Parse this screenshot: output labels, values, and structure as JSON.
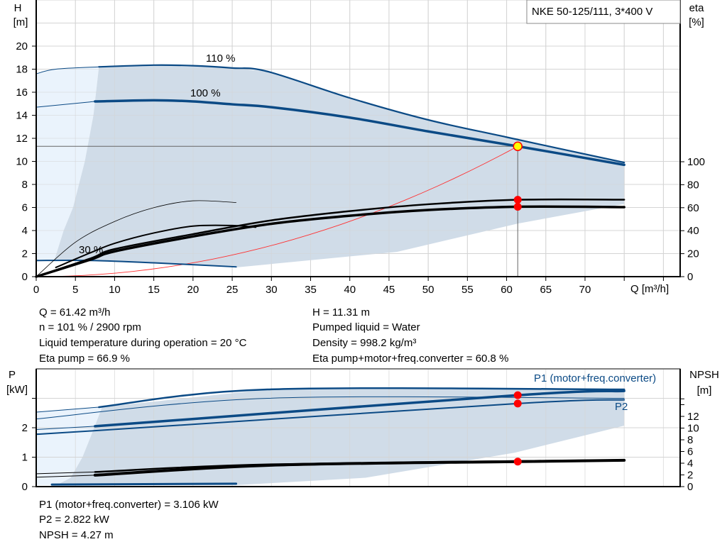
{
  "colors": {
    "curve_blue": "#0b4a85",
    "envelope": "#d0dce8",
    "envelope_light": "#eaf3fc",
    "grid": "#d4d4d4",
    "marker_red": "#ff0000",
    "marker_yellow": "#ffff00",
    "system_curve": "#ff3030"
  },
  "chart_data": [
    {
      "type": "line",
      "title": "NKE 50-125/111, 3*400 V",
      "xlabel": "Q [m³/h]",
      "ylabel": "H",
      "ylabel_unit": "[m]",
      "y2label": "eta",
      "y2label_unit": "[%]",
      "xlim": [
        0,
        82
      ],
      "ylim": [
        0,
        24
      ],
      "y2lim": [
        0,
        148
      ],
      "grid": true,
      "xticks": [
        0,
        5,
        10,
        15,
        20,
        25,
        30,
        35,
        40,
        45,
        50,
        55,
        60,
        65,
        70
      ],
      "yticks": [
        0,
        2,
        4,
        6,
        8,
        10,
        12,
        14,
        16,
        18,
        20
      ],
      "y2ticks": [
        0,
        20,
        40,
        60,
        80,
        100
      ],
      "envelopes": [
        {
          "shade": "light",
          "axis": "H",
          "points": [
            [
              0,
              17.6
            ],
            [
              2.5,
              18.0
            ],
            [
              8,
              18.2
            ],
            [
              7.3,
              14
            ],
            [
              6.2,
              10
            ],
            [
              4.7,
              6
            ],
            [
              3.5,
              4
            ],
            [
              2.3,
              1.4
            ],
            [
              0,
              1.4
            ]
          ]
        },
        {
          "shade": "dark",
          "axis": "H",
          "points": [
            [
              8,
              18.2
            ],
            [
              15,
              18.35
            ],
            [
              20,
              18.3
            ],
            [
              25,
              18.1
            ],
            [
              29.5,
              17.8
            ],
            [
              40,
              15.5
            ],
            [
              50,
              13.6
            ],
            [
              60,
              12.1
            ],
            [
              75,
              9.9
            ],
            [
              75,
              6.3
            ],
            [
              61.4,
              4.6
            ],
            [
              46,
              2.15
            ],
            [
              25.5,
              0.8
            ],
            [
              15,
              1.2
            ],
            [
              7,
              1.4
            ],
            [
              2.3,
              1.4
            ],
            [
              3.5,
              4
            ],
            [
              4.7,
              6
            ],
            [
              6.2,
              10
            ],
            [
              7.3,
              14
            ],
            [
              8,
              18.2
            ]
          ]
        }
      ],
      "series": [
        {
          "name": "110 %",
          "axis": "H",
          "color": "blue",
          "thin": [
            [
              0,
              17.6
            ],
            [
              2.5,
              18.0
            ],
            [
              8,
              18.2
            ]
          ],
          "points": [
            [
              8,
              18.2
            ],
            [
              15,
              18.35
            ],
            [
              20,
              18.3
            ],
            [
              25,
              18.1
            ],
            [
              29.5,
              17.8
            ],
            [
              40,
              15.5
            ],
            [
              50,
              13.6
            ],
            [
              60,
              12.1
            ],
            [
              75,
              9.9
            ]
          ],
          "width": 2.2
        },
        {
          "name": "100 %",
          "axis": "H",
          "color": "blue",
          "thin": [
            [
              0,
              14.7
            ],
            [
              7.5,
              15.2
            ]
          ],
          "points": [
            [
              7.5,
              15.2
            ],
            [
              15,
              15.3
            ],
            [
              20,
              15.2
            ],
            [
              25,
              14.95
            ],
            [
              30,
              14.7
            ],
            [
              40,
              13.8
            ],
            [
              50,
              12.6
            ],
            [
              61.42,
              11.31
            ],
            [
              75,
              9.7
            ]
          ],
          "width": 3.5
        },
        {
          "name": "30 %",
          "axis": "H",
          "color": "blue",
          "points": [
            [
              0,
              1.4
            ],
            [
              7,
              1.4
            ],
            [
              15,
              1.2
            ],
            [
              25.5,
              0.85
            ]
          ],
          "width": 2
        },
        {
          "axis": "eta",
          "color": "black",
          "points": [
            [
              0,
              0
            ],
            [
              5,
              30
            ],
            [
              10,
              48
            ],
            [
              15,
              60
            ],
            [
              20,
              66
            ],
            [
              25.5,
              64.5
            ]
          ],
          "width": 0.8
        },
        {
          "axis": "eta",
          "color": "black",
          "points": [
            [
              2.5,
              8
            ],
            [
              7,
              21
            ],
            [
              10,
              29
            ],
            [
              15,
              38
            ],
            [
              20,
              44
            ],
            [
              25,
              44.5
            ],
            [
              28,
              43
            ]
          ],
          "width": 2
        },
        {
          "axis": "eta",
          "color": "black",
          "points": [
            [
              0,
              0
            ],
            [
              7,
              16
            ],
            [
              10,
              24
            ],
            [
              20,
              37
            ],
            [
              30,
              49
            ],
            [
              40,
              57
            ],
            [
              50,
              63
            ],
            [
              61.42,
              66.9
            ],
            [
              75,
              67
            ]
          ],
          "width": 2.5
        },
        {
          "axis": "eta",
          "color": "black",
          "points": [
            [
              0,
              0
            ],
            [
              7,
              15
            ],
            [
              10,
              22
            ],
            [
              20,
              35
            ],
            [
              30,
              46
            ],
            [
              40,
              53
            ],
            [
              50,
              58
            ],
            [
              61.42,
              60.8
            ],
            [
              75,
              60.5
            ]
          ],
          "width": 3.5
        }
      ],
      "operating_point": {
        "Q": 61.42,
        "H": 11.31,
        "eta_pump": 66.9,
        "eta_total": 60.8
      }
    },
    {
      "type": "line",
      "ylabel": "P",
      "ylabel_unit": "[kW]",
      "y2label": "NPSH",
      "y2label_unit": "[m]",
      "xlim": [
        0,
        82
      ],
      "ylim": [
        0,
        4
      ],
      "y2lim": [
        0,
        20.1
      ],
      "grid": true,
      "yticks": [
        0,
        1,
        2
      ],
      "y2ticks": [
        0,
        2,
        4,
        6,
        8,
        10,
        12
      ],
      "series_labels": {
        "p1": "P1 (motor+freq.converter)",
        "p2": "P2"
      },
      "envelopes": [
        {
          "shade": "light",
          "axis": "P",
          "points": [
            [
              0,
              2.53
            ],
            [
              8.4,
              2.7
            ],
            [
              7.4,
              2
            ],
            [
              5.9,
              1
            ],
            [
              4.4,
              0.3
            ],
            [
              2.6,
              0.05
            ],
            [
              0,
              0.05
            ]
          ]
        },
        {
          "shade": "dark",
          "axis": "P",
          "points": [
            [
              8.4,
              2.7
            ],
            [
              29.5,
              3.3
            ],
            [
              75,
              3.3
            ],
            [
              75,
              2.07
            ],
            [
              61,
              1.15
            ],
            [
              42,
              0.3
            ],
            [
              25.5,
              0.05
            ],
            [
              2.6,
              0.05
            ],
            [
              4.4,
              0.3
            ],
            [
              5.9,
              1
            ],
            [
              7.4,
              2
            ],
            [
              8.4,
              2.7
            ]
          ]
        }
      ],
      "series": [
        {
          "name": "P1 (motor+freq.converter)",
          "axis": "P",
          "color": "blue",
          "thin": [
            [
              0,
              2.53
            ],
            [
              8,
              2.7
            ]
          ],
          "points": [
            [
              8,
              2.7
            ],
            [
              29.5,
              3.3
            ],
            [
              75,
              3.3
            ]
          ],
          "width": 2.5
        },
        {
          "axis": "P",
          "color": "blue",
          "points": [
            [
              0,
              2.3
            ],
            [
              29.5,
              3.0
            ],
            [
              75,
              3.0
            ]
          ],
          "width": 1
        },
        {
          "name": "P1 (motor+freq.converter)",
          "axis": "P",
          "color": "blue",
          "thin": [
            [
              0,
              1.94
            ],
            [
              7.5,
              2.05
            ]
          ],
          "points": [
            [
              7.5,
              2.05
            ],
            [
              61.42,
              3.106
            ],
            [
              75,
              3.25
            ]
          ],
          "width": 3.5
        },
        {
          "name": "P2",
          "axis": "P",
          "color": "blue",
          "points": [
            [
              0,
              1.78
            ],
            [
              7.5,
              1.9
            ],
            [
              61.42,
              2.822
            ],
            [
              75,
              2.95
            ]
          ],
          "width": 2
        },
        {
          "axis": "P",
          "color": "blue",
          "points": [
            [
              2,
              0.07
            ],
            [
              25.5,
              0.1
            ]
          ],
          "width": 3
        },
        {
          "axis": "NPSH",
          "color": "black",
          "thin": [
            [
              0,
              2.2
            ],
            [
              7.5,
              2.5
            ]
          ],
          "points": [
            [
              7.5,
              2.5
            ],
            [
              30,
              3.8
            ],
            [
              75,
              4.55
            ]
          ],
          "width": 2.5
        },
        {
          "axis": "NPSH",
          "color": "black",
          "thin": [
            [
              0,
              1.6
            ],
            [
              7.5,
              1.95
            ]
          ],
          "points": [
            [
              7.5,
              1.95
            ],
            [
              30,
              3.65
            ],
            [
              61.42,
              4.27
            ],
            [
              75,
              4.5
            ]
          ],
          "width": 4
        }
      ],
      "operating_point": {
        "Q": 61.42,
        "P1": 3.106,
        "P2": 2.822,
        "NPSH": 4.27
      }
    }
  ],
  "info_top": {
    "q": "Q = 61.42 m³/h",
    "n": "n = 101 % / 2900 rpm",
    "temp": "Liquid temperature during operation = 20 °C",
    "eta_pump": "Eta pump = 66.9 %",
    "h": "H = 11.31 m",
    "liquid": "Pumped liquid = Water",
    "density": "Density = 998.2 kg/m³",
    "eta_total": "Eta pump+motor+freq.converter = 60.8 %"
  },
  "info_bottom": {
    "p1": "P1 (motor+freq.converter) = 3.106 kW",
    "p2": "P2 = 2.822 kW",
    "npsh": "NPSH = 4.27 m"
  }
}
